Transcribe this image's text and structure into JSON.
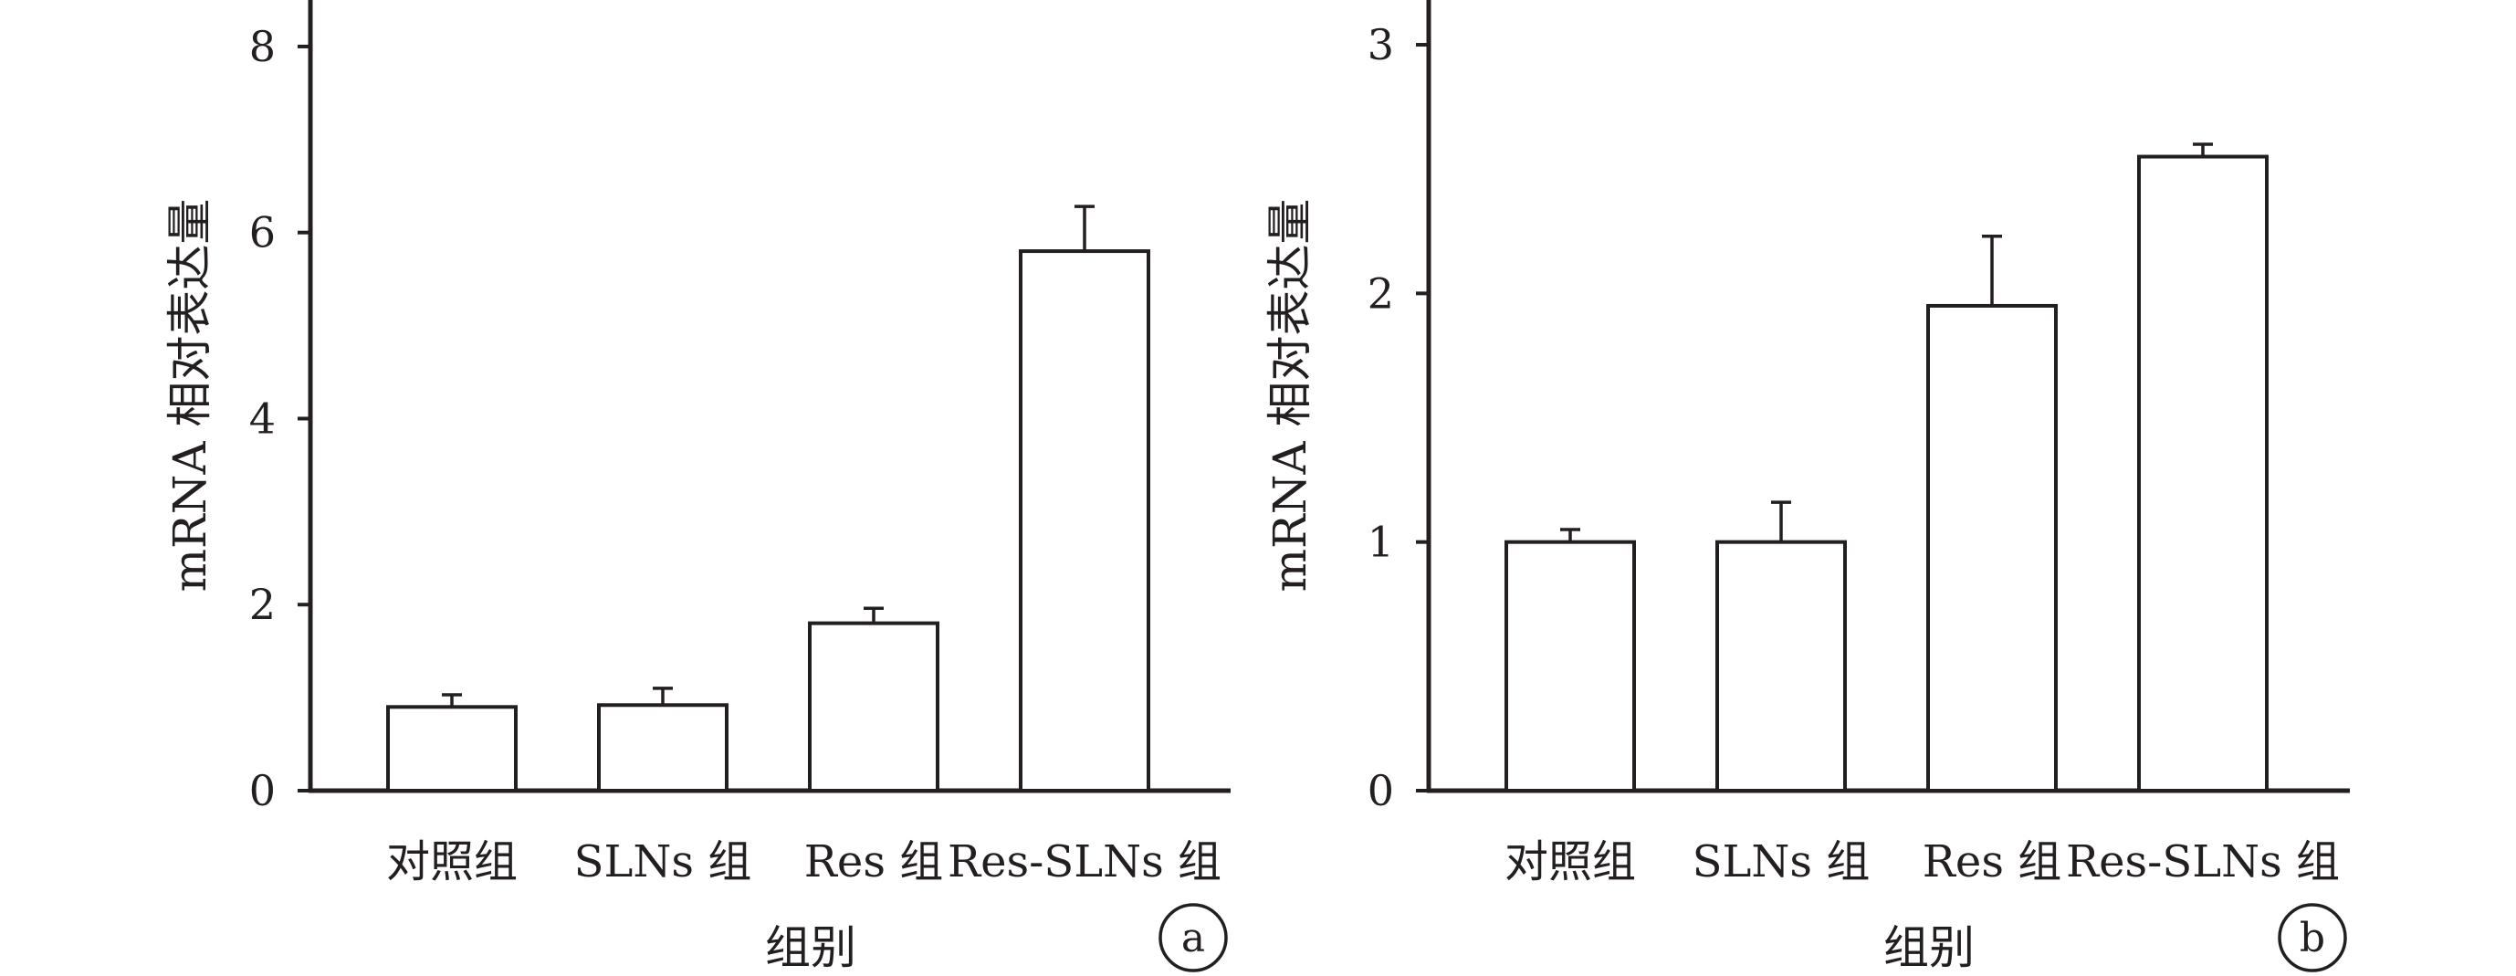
{
  "chart_data": [
    {
      "type": "bar",
      "panel_label": "a",
      "categories": [
        "对照组",
        "SLNs 组",
        "Res 组",
        "Res-SLNs 组"
      ],
      "values": [
        0.9,
        0.92,
        1.8,
        5.8
      ],
      "errors": [
        0.13,
        0.18,
        0.16,
        0.48
      ],
      "xlabel": "组别",
      "ylabel": "mRNA 相对表达量",
      "ylim": [
        0,
        8.5
      ],
      "yticks": [
        0,
        2,
        4,
        6,
        8
      ],
      "bar_fill": "#ffffff",
      "bar_stroke": "#231f20"
    },
    {
      "type": "bar",
      "panel_label": "b",
      "categories": [
        "对照组",
        "SLNs 组",
        "Res 组",
        "Res-SLNs 组"
      ],
      "values": [
        1.0,
        1.0,
        1.95,
        2.55
      ],
      "errors": [
        0.05,
        0.16,
        0.28,
        0.05
      ],
      "xlabel": "组别",
      "ylabel": "mRNA 相对表达量",
      "ylim": [
        0,
        3.18
      ],
      "yticks": [
        0,
        1,
        2,
        3
      ],
      "bar_fill": "#ffffff",
      "bar_stroke": "#231f20"
    }
  ]
}
